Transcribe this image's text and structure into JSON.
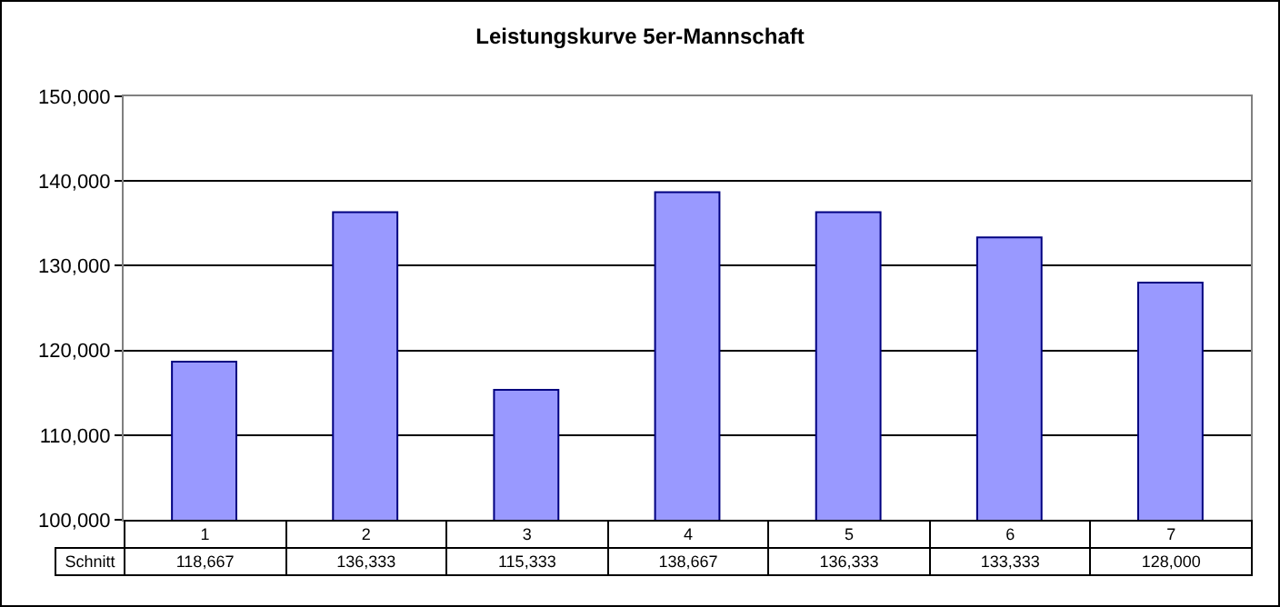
{
  "chart_data": {
    "type": "bar",
    "title": "Leistungskurve 5er-Mannschaft",
    "categories": [
      "1",
      "2",
      "3",
      "4",
      "5",
      "6",
      "7"
    ],
    "series": [
      {
        "name": "Schnitt",
        "color": "#9999ff",
        "values": [
          118667,
          136333,
          115333,
          138667,
          136333,
          133333,
          128000
        ],
        "value_labels": [
          "118,667",
          "136,333",
          "115,333",
          "138,667",
          "136,333",
          "133,333",
          "128,000"
        ]
      }
    ],
    "ylim": [
      100000,
      150000
    ],
    "yticks": [
      {
        "value": 100000,
        "label": "100,000"
      },
      {
        "value": 110000,
        "label": "110,000"
      },
      {
        "value": 120000,
        "label": "120,000"
      },
      {
        "value": 130000,
        "label": "130,000"
      },
      {
        "value": 140000,
        "label": "140,000"
      },
      {
        "value": 150000,
        "label": "150,000"
      }
    ],
    "grid": "y"
  }
}
